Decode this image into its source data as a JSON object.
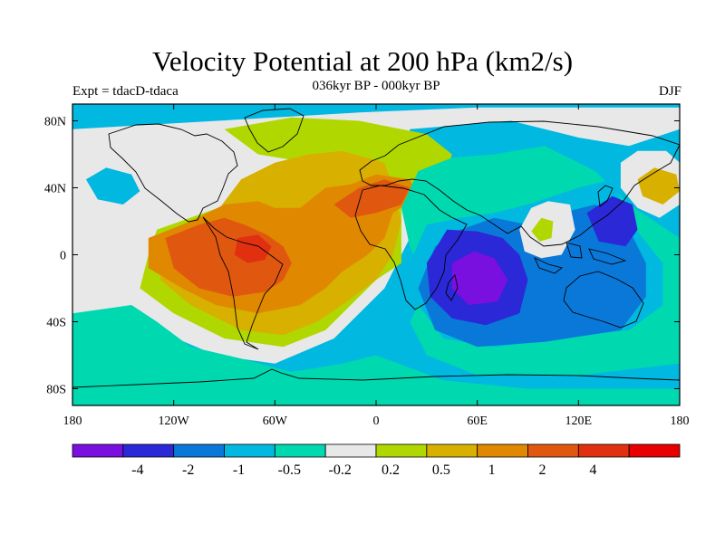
{
  "title": "Velocity Potential at 200 hPa (km2/s)",
  "subtitle": "036kyr BP - 000kyr BP",
  "left_label": "Expt = tdacD-tdaca",
  "right_label": "DJF",
  "axes": {
    "lat_ticks": [
      {
        "lat": 80,
        "label": "80N"
      },
      {
        "lat": 40,
        "label": "40N"
      },
      {
        "lat": 0,
        "label": "0"
      },
      {
        "lat": -40,
        "label": "40S"
      },
      {
        "lat": -80,
        "label": "80S"
      }
    ],
    "lon_ticks": [
      {
        "lon": -180,
        "label": "180"
      },
      {
        "lon": -120,
        "label": "120W"
      },
      {
        "lon": -60,
        "label": "60W"
      },
      {
        "lon": 0,
        "label": "0"
      },
      {
        "lon": 60,
        "label": "60E"
      },
      {
        "lon": 120,
        "label": "120E"
      },
      {
        "lon": 180,
        "label": "180"
      }
    ]
  },
  "colorbar": {
    "colors": [
      "#7a10e0",
      "#2b28d8",
      "#0a78d8",
      "#00b8e0",
      "#00d8b0",
      "#e8e8e8",
      "#b0d800",
      "#d8b000",
      "#e08800",
      "#e05810",
      "#e03010",
      "#e80000"
    ],
    "labels": [
      "-4",
      "-2",
      "-1",
      "-0.5",
      "-0.2",
      "0.2",
      "0.5",
      "1",
      "2",
      "4"
    ]
  },
  "field": {
    "background_level": 3,
    "regions": [
      {
        "level": 5,
        "points": [
          [
            -180,
            -90
          ],
          [
            -140,
            -35
          ],
          [
            -125,
            -15
          ],
          [
            -180,
            -5
          ]
        ]
      },
      {
        "level": 5,
        "points": [
          [
            -180,
            -40
          ],
          [
            -180,
            75
          ],
          [
            -10,
            85
          ],
          [
            60,
            88
          ],
          [
            180,
            88
          ],
          [
            180,
            75
          ],
          [
            150,
            65
          ],
          [
            120,
            70
          ],
          [
            80,
            80
          ],
          [
            20,
            75
          ],
          [
            20,
            10
          ],
          [
            5,
            -20
          ],
          [
            -15,
            -40
          ],
          [
            -25,
            -50
          ],
          [
            -60,
            -65
          ],
          [
            -95,
            -60
          ],
          [
            -130,
            -45
          ]
        ]
      },
      {
        "level": 6,
        "points": [
          [
            -130,
            15
          ],
          [
            -60,
            40
          ],
          [
            -30,
            55
          ],
          [
            -10,
            70
          ],
          [
            10,
            70
          ],
          [
            10,
            40
          ],
          [
            15,
            30
          ],
          [
            15,
            -5
          ],
          [
            0,
            -15
          ],
          [
            -15,
            -30
          ],
          [
            -30,
            -45
          ],
          [
            -55,
            -55
          ],
          [
            -90,
            -50
          ],
          [
            -120,
            -35
          ],
          [
            -140,
            -20
          ],
          [
            -135,
            0
          ]
        ]
      },
      {
        "level": 6,
        "points": [
          [
            -90,
            75
          ],
          [
            -50,
            82
          ],
          [
            -10,
            80
          ],
          [
            30,
            72
          ],
          [
            45,
            60
          ],
          [
            40,
            45
          ],
          [
            20,
            40
          ],
          [
            -10,
            45
          ],
          [
            -40,
            55
          ],
          [
            -70,
            60
          ]
        ]
      },
      {
        "level": 7,
        "points": [
          [
            -125,
            5
          ],
          [
            -95,
            25
          ],
          [
            -80,
            45
          ],
          [
            -60,
            55
          ],
          [
            -40,
            60
          ],
          [
            -20,
            62
          ],
          [
            5,
            55
          ],
          [
            10,
            40
          ],
          [
            15,
            20
          ],
          [
            10,
            0
          ],
          [
            0,
            -15
          ],
          [
            -20,
            -30
          ],
          [
            -35,
            -40
          ],
          [
            -55,
            -48
          ],
          [
            -80,
            -45
          ],
          [
            -110,
            -30
          ],
          [
            -128,
            -15
          ]
        ]
      },
      {
        "level": 8,
        "points": [
          [
            -135,
            10
          ],
          [
            -110,
            20
          ],
          [
            -90,
            30
          ],
          [
            -70,
            32
          ],
          [
            -60,
            28
          ],
          [
            -45,
            28
          ],
          [
            -30,
            40
          ],
          [
            -15,
            42
          ],
          [
            0,
            48
          ],
          [
            20,
            45
          ],
          [
            25,
            35
          ],
          [
            10,
            25
          ],
          [
            5,
            10
          ],
          [
            -5,
            0
          ],
          [
            -20,
            -10
          ],
          [
            -30,
            -20
          ],
          [
            -45,
            -30
          ],
          [
            -70,
            -35
          ],
          [
            -95,
            -30
          ],
          [
            -115,
            -20
          ],
          [
            -135,
            -8
          ]
        ]
      },
      {
        "level": 9,
        "points": [
          [
            -125,
            10
          ],
          [
            -105,
            18
          ],
          [
            -90,
            22
          ],
          [
            -78,
            18
          ],
          [
            -65,
            12
          ],
          [
            -55,
            5
          ],
          [
            -50,
            -5
          ],
          [
            -55,
            -15
          ],
          [
            -65,
            -22
          ],
          [
            -85,
            -25
          ],
          [
            -105,
            -20
          ],
          [
            -120,
            -8
          ]
        ]
      },
      {
        "level": 9,
        "points": [
          [
            -25,
            30
          ],
          [
            -10,
            40
          ],
          [
            5,
            45
          ],
          [
            20,
            40
          ],
          [
            15,
            30
          ],
          [
            0,
            25
          ],
          [
            -15,
            22
          ]
        ]
      },
      {
        "level": 10,
        "points": [
          [
            -82,
            10
          ],
          [
            -70,
            12
          ],
          [
            -62,
            5
          ],
          [
            -66,
            -3
          ],
          [
            -76,
            -5
          ],
          [
            -84,
            0
          ]
        ]
      },
      {
        "level": 4,
        "points": [
          [
            25,
            50
          ],
          [
            15,
            28
          ],
          [
            20,
            5
          ],
          [
            30,
            -20
          ],
          [
            20,
            -40
          ],
          [
            30,
            -60
          ],
          [
            60,
            -72
          ],
          [
            120,
            -72
          ],
          [
            180,
            -65
          ],
          [
            180,
            10
          ],
          [
            150,
            30
          ],
          [
            130,
            50
          ],
          [
            100,
            65
          ],
          [
            70,
            60
          ],
          [
            45,
            58
          ]
        ]
      },
      {
        "level": 3,
        "points": [
          [
            30,
            18
          ],
          [
            20,
            -5
          ],
          [
            25,
            -30
          ],
          [
            40,
            -50
          ],
          [
            70,
            -55
          ],
          [
            110,
            -50
          ],
          [
            150,
            -45
          ],
          [
            170,
            -30
          ],
          [
            170,
            -5
          ],
          [
            150,
            20
          ],
          [
            140,
            45
          ],
          [
            120,
            40
          ],
          [
            90,
            30
          ],
          [
            70,
            25
          ],
          [
            50,
            22
          ]
        ]
      },
      {
        "level": 2,
        "points": [
          [
            35,
            5
          ],
          [
            25,
            -20
          ],
          [
            35,
            -45
          ],
          [
            60,
            -55
          ],
          [
            100,
            -52
          ],
          [
            145,
            -45
          ],
          [
            160,
            -25
          ],
          [
            160,
            -5
          ],
          [
            150,
            15
          ],
          [
            130,
            30
          ],
          [
            110,
            25
          ],
          [
            90,
            18
          ],
          [
            70,
            22
          ],
          [
            50,
            15
          ]
        ]
      },
      {
        "level": 1,
        "points": [
          [
            42,
            15
          ],
          [
            30,
            -5
          ],
          [
            32,
            -25
          ],
          [
            45,
            -38
          ],
          [
            65,
            -42
          ],
          [
            85,
            -35
          ],
          [
            90,
            -15
          ],
          [
            85,
            0
          ],
          [
            75,
            10
          ],
          [
            60,
            14
          ]
        ]
      },
      {
        "level": 1,
        "points": [
          [
            125,
            25
          ],
          [
            140,
            35
          ],
          [
            152,
            30
          ],
          [
            155,
            15
          ],
          [
            148,
            5
          ],
          [
            132,
            8
          ]
        ]
      },
      {
        "level": 0,
        "points": [
          [
            45,
            -5
          ],
          [
            45,
            -20
          ],
          [
            55,
            -30
          ],
          [
            72,
            -28
          ],
          [
            78,
            -15
          ],
          [
            70,
            -2
          ],
          [
            58,
            2
          ]
        ]
      },
      {
        "level": 5,
        "points": [
          [
            85,
            15
          ],
          [
            92,
            28
          ],
          [
            102,
            32
          ],
          [
            115,
            30
          ],
          [
            118,
            15
          ],
          [
            110,
            0
          ],
          [
            98,
            -2
          ],
          [
            88,
            2
          ]
        ]
      },
      {
        "level": 6,
        "points": [
          [
            92,
            14
          ],
          [
            98,
            22
          ],
          [
            105,
            20
          ],
          [
            104,
            10
          ],
          [
            97,
            8
          ]
        ]
      },
      {
        "level": 5,
        "points": [
          [
            145,
            55
          ],
          [
            155,
            62
          ],
          [
            172,
            62
          ],
          [
            180,
            55
          ],
          [
            180,
            30
          ],
          [
            168,
            22
          ],
          [
            155,
            28
          ],
          [
            145,
            40
          ]
        ]
      },
      {
        "level": 7,
        "points": [
          [
            155,
            45
          ],
          [
            165,
            52
          ],
          [
            178,
            48
          ],
          [
            180,
            38
          ],
          [
            170,
            30
          ],
          [
            158,
            35
          ]
        ]
      },
      {
        "level": 3,
        "points": [
          [
            -172,
            45
          ],
          [
            -160,
            52
          ],
          [
            -145,
            48
          ],
          [
            -140,
            38
          ],
          [
            -150,
            30
          ],
          [
            -165,
            33
          ]
        ]
      },
      {
        "level": 4,
        "points": [
          [
            -180,
            -35
          ],
          [
            -145,
            -30
          ],
          [
            -130,
            -40
          ],
          [
            -110,
            -55
          ],
          [
            -80,
            -62
          ],
          [
            -50,
            -70
          ],
          [
            -20,
            -65
          ],
          [
            0,
            -60
          ],
          [
            40,
            -75
          ],
          [
            90,
            -80
          ],
          [
            180,
            -80
          ],
          [
            180,
            -90
          ],
          [
            -180,
            -90
          ]
        ]
      }
    ]
  }
}
